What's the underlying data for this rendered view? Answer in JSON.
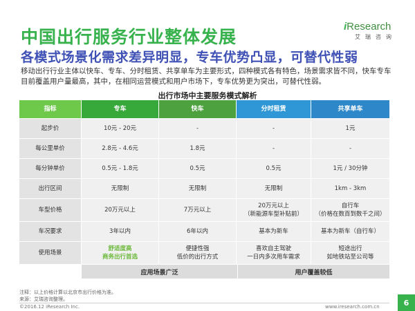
{
  "title": "中国出行服务行业整体发展",
  "subtitle": "各模式场景化需求差异明显，专车优势凸显，可替代性弱",
  "intro": "移动出行行业主体以快车、专车、分时租赁、共享单车为主要形式，四种模式各有特色，场景需求皆不同，快车专车目前覆盖用户量最高，其中，在相同运营模式和用户市场下，专车优势更为突出，可替代性弱。",
  "logo": {
    "word_i": "i",
    "word_rest": "Research",
    "cn": "艾瑞咨询"
  },
  "table_title": "出行市场中主要服务模式解析",
  "headers": [
    "指标",
    "专车",
    "快车",
    "分时租赁",
    "共享单车"
  ],
  "rows": [
    [
      "起步价",
      "10元 - 20元",
      "-",
      "-",
      "1元"
    ],
    [
      "每公里单价",
      "2.8元 - 4.6元",
      "1.8元",
      "-",
      "-"
    ],
    [
      "每分钟单价",
      "0.5元 - 1.8元",
      "0.5元",
      "0.5元",
      "1元 / 30分钟"
    ],
    [
      "出行区间",
      "无限制",
      "无限制",
      "无限制",
      "1km - 3km"
    ],
    [
      "车型价格",
      "20万元以上",
      "7万元以上",
      "20万元以上\n（新能源车型补贴前）",
      "自行车\n（价格在数百到数千之间）"
    ],
    [
      "车况要求",
      "3年以内",
      "6年以内",
      "基本为新车",
      "基本为新车（自行车）"
    ],
    [
      "使用场景",
      "舒适度高\n商务出行首选",
      "便捷性强\n低价的出行方式",
      "喜欢自主驾驶\n一日内多次用车需求",
      "短途出行\n如地铁站至公司等"
    ]
  ],
  "footer_row": {
    "left": "应用场景广泛",
    "right": "用户覆盖较低"
  },
  "notes": [
    "注释：以上价格计算以北京市出行价格为准。",
    "来源：艾瑞咨询整理。"
  ],
  "copyright": "©2016.12 iResearch Inc.",
  "website": "www.iresearch.com.cn",
  "page_number": "6"
}
